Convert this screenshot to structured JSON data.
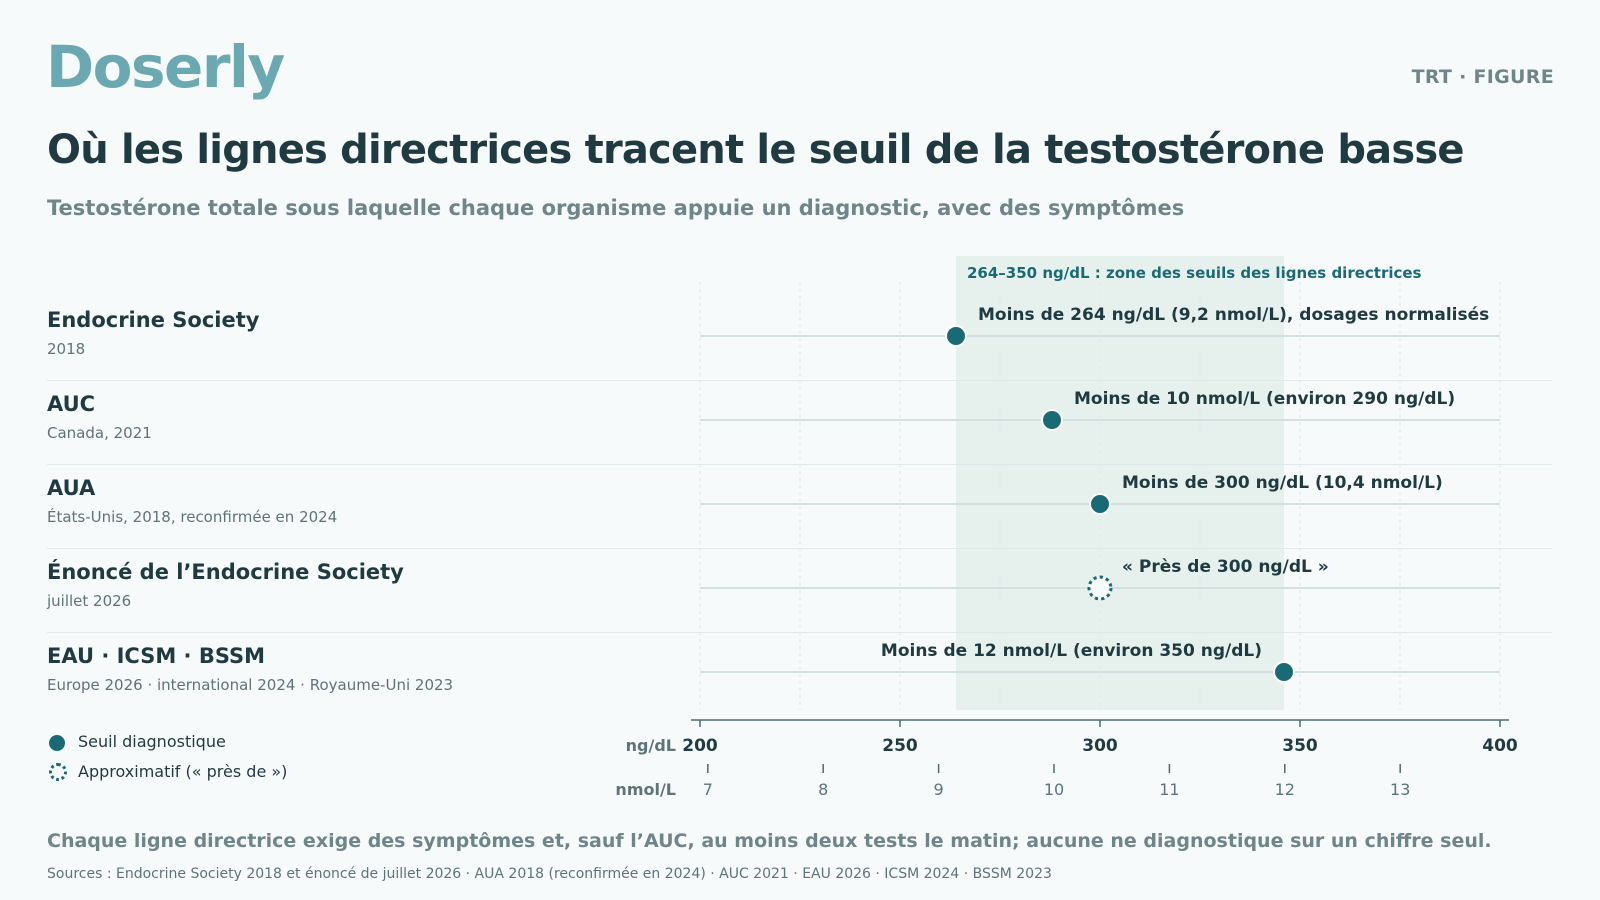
{
  "brand": "Doserly",
  "tag": "TRT · FIGURE",
  "title": "Où les lignes directrices tracent le seuil de la testostérone basse",
  "subtitle": "Testostérone totale sous laquelle chaque organisme appuie un diagnostic, avec des symptômes",
  "legend": {
    "solid": "Seuil diagnostique",
    "approx": "Approximatif (« près de »)"
  },
  "footer_note": "Chaque ligne directrice exige des symptômes et, sauf l’AUC, au moins deux tests le matin; aucune ne diagnostique sur un chiffre seul.",
  "sources": "Sources : Endocrine Society 2018 et énoncé de juillet 2026 · AUA 2018 (reconfirmée en 2024) · AUC 2021 · EAU 2026 · ICSM 2024 · BSSM 2023",
  "colors": {
    "accent": "#1a6a76",
    "band": "#e6f1ee",
    "brand": "#6aa9b1"
  },
  "chart_data": {
    "type": "scatter",
    "orientation": "dot-plot",
    "xlabel_primary": "ng/dL",
    "xlabel_secondary": "nmol/L",
    "xlim": [
      200,
      400
    ],
    "ticks_primary": [
      200,
      250,
      300,
      350,
      400
    ],
    "ticks_secondary": [
      7,
      8,
      9,
      10,
      11,
      12,
      13
    ],
    "nmol_to_ngdl": 28.85,
    "band": {
      "from": 264,
      "to": 346,
      "label": "264–350 ng/dL : zone des seuils des lignes directrices"
    },
    "rows": [
      {
        "org": "Endocrine Society",
        "detail": "2018",
        "value": 264,
        "approx": false,
        "label": "Moins de 264 ng/dL (9,2 nmol/L), dosages normalisés",
        "label_side": "right"
      },
      {
        "org": "AUC",
        "detail": "Canada, 2021",
        "value": 288,
        "approx": false,
        "label": "Moins de 10 nmol/L (environ 290 ng/dL)",
        "label_side": "right"
      },
      {
        "org": "AUA",
        "detail": "États-Unis, 2018, reconfirmée en 2024",
        "value": 300,
        "approx": false,
        "label": "Moins de 300 ng/dL (10,4 nmol/L)",
        "label_side": "right"
      },
      {
        "org": "Énoncé de l’Endocrine Society",
        "detail": "juillet 2026",
        "value": 300,
        "approx": true,
        "label": "« Près de 300 ng/dL »",
        "label_side": "right"
      },
      {
        "org": "EAU · ICSM · BSSM",
        "detail": "Europe 2026 · international 2024 · Royaume-Uni 2023",
        "value": 346,
        "approx": false,
        "label": "Moins de 12 nmol/L (environ 350 ng/dL)",
        "label_side": "left"
      }
    ]
  }
}
